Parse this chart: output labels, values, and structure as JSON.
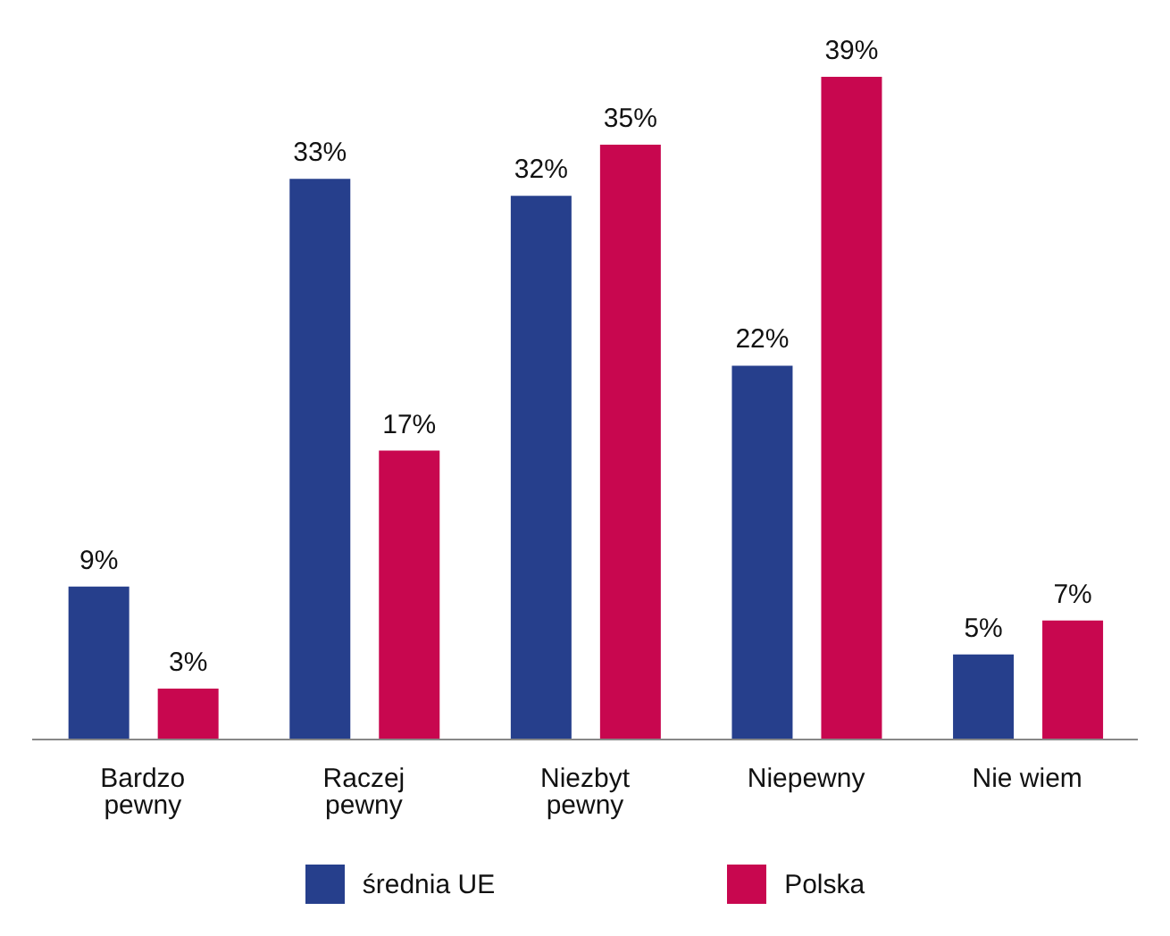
{
  "chart_data": {
    "type": "bar",
    "categories": [
      "Bardzo pewny",
      "Raczej pewny",
      "Niezbyt pewny",
      "Niepewny",
      "Nie wiem"
    ],
    "series": [
      {
        "name": "średnia UE",
        "color": "#263f8c",
        "values": [
          9,
          33,
          32,
          22,
          5
        ],
        "value_labels": [
          "9%",
          "33%",
          "32%",
          "22%",
          "5%"
        ]
      },
      {
        "name": "Polska",
        "color": "#c8074f",
        "values": [
          3,
          17,
          35,
          39,
          7
        ],
        "value_labels": [
          "3%",
          "17%",
          "35%",
          "39%",
          "7%"
        ]
      }
    ],
    "legend": "bottom",
    "grid": false,
    "tick_labels": "x"
  }
}
